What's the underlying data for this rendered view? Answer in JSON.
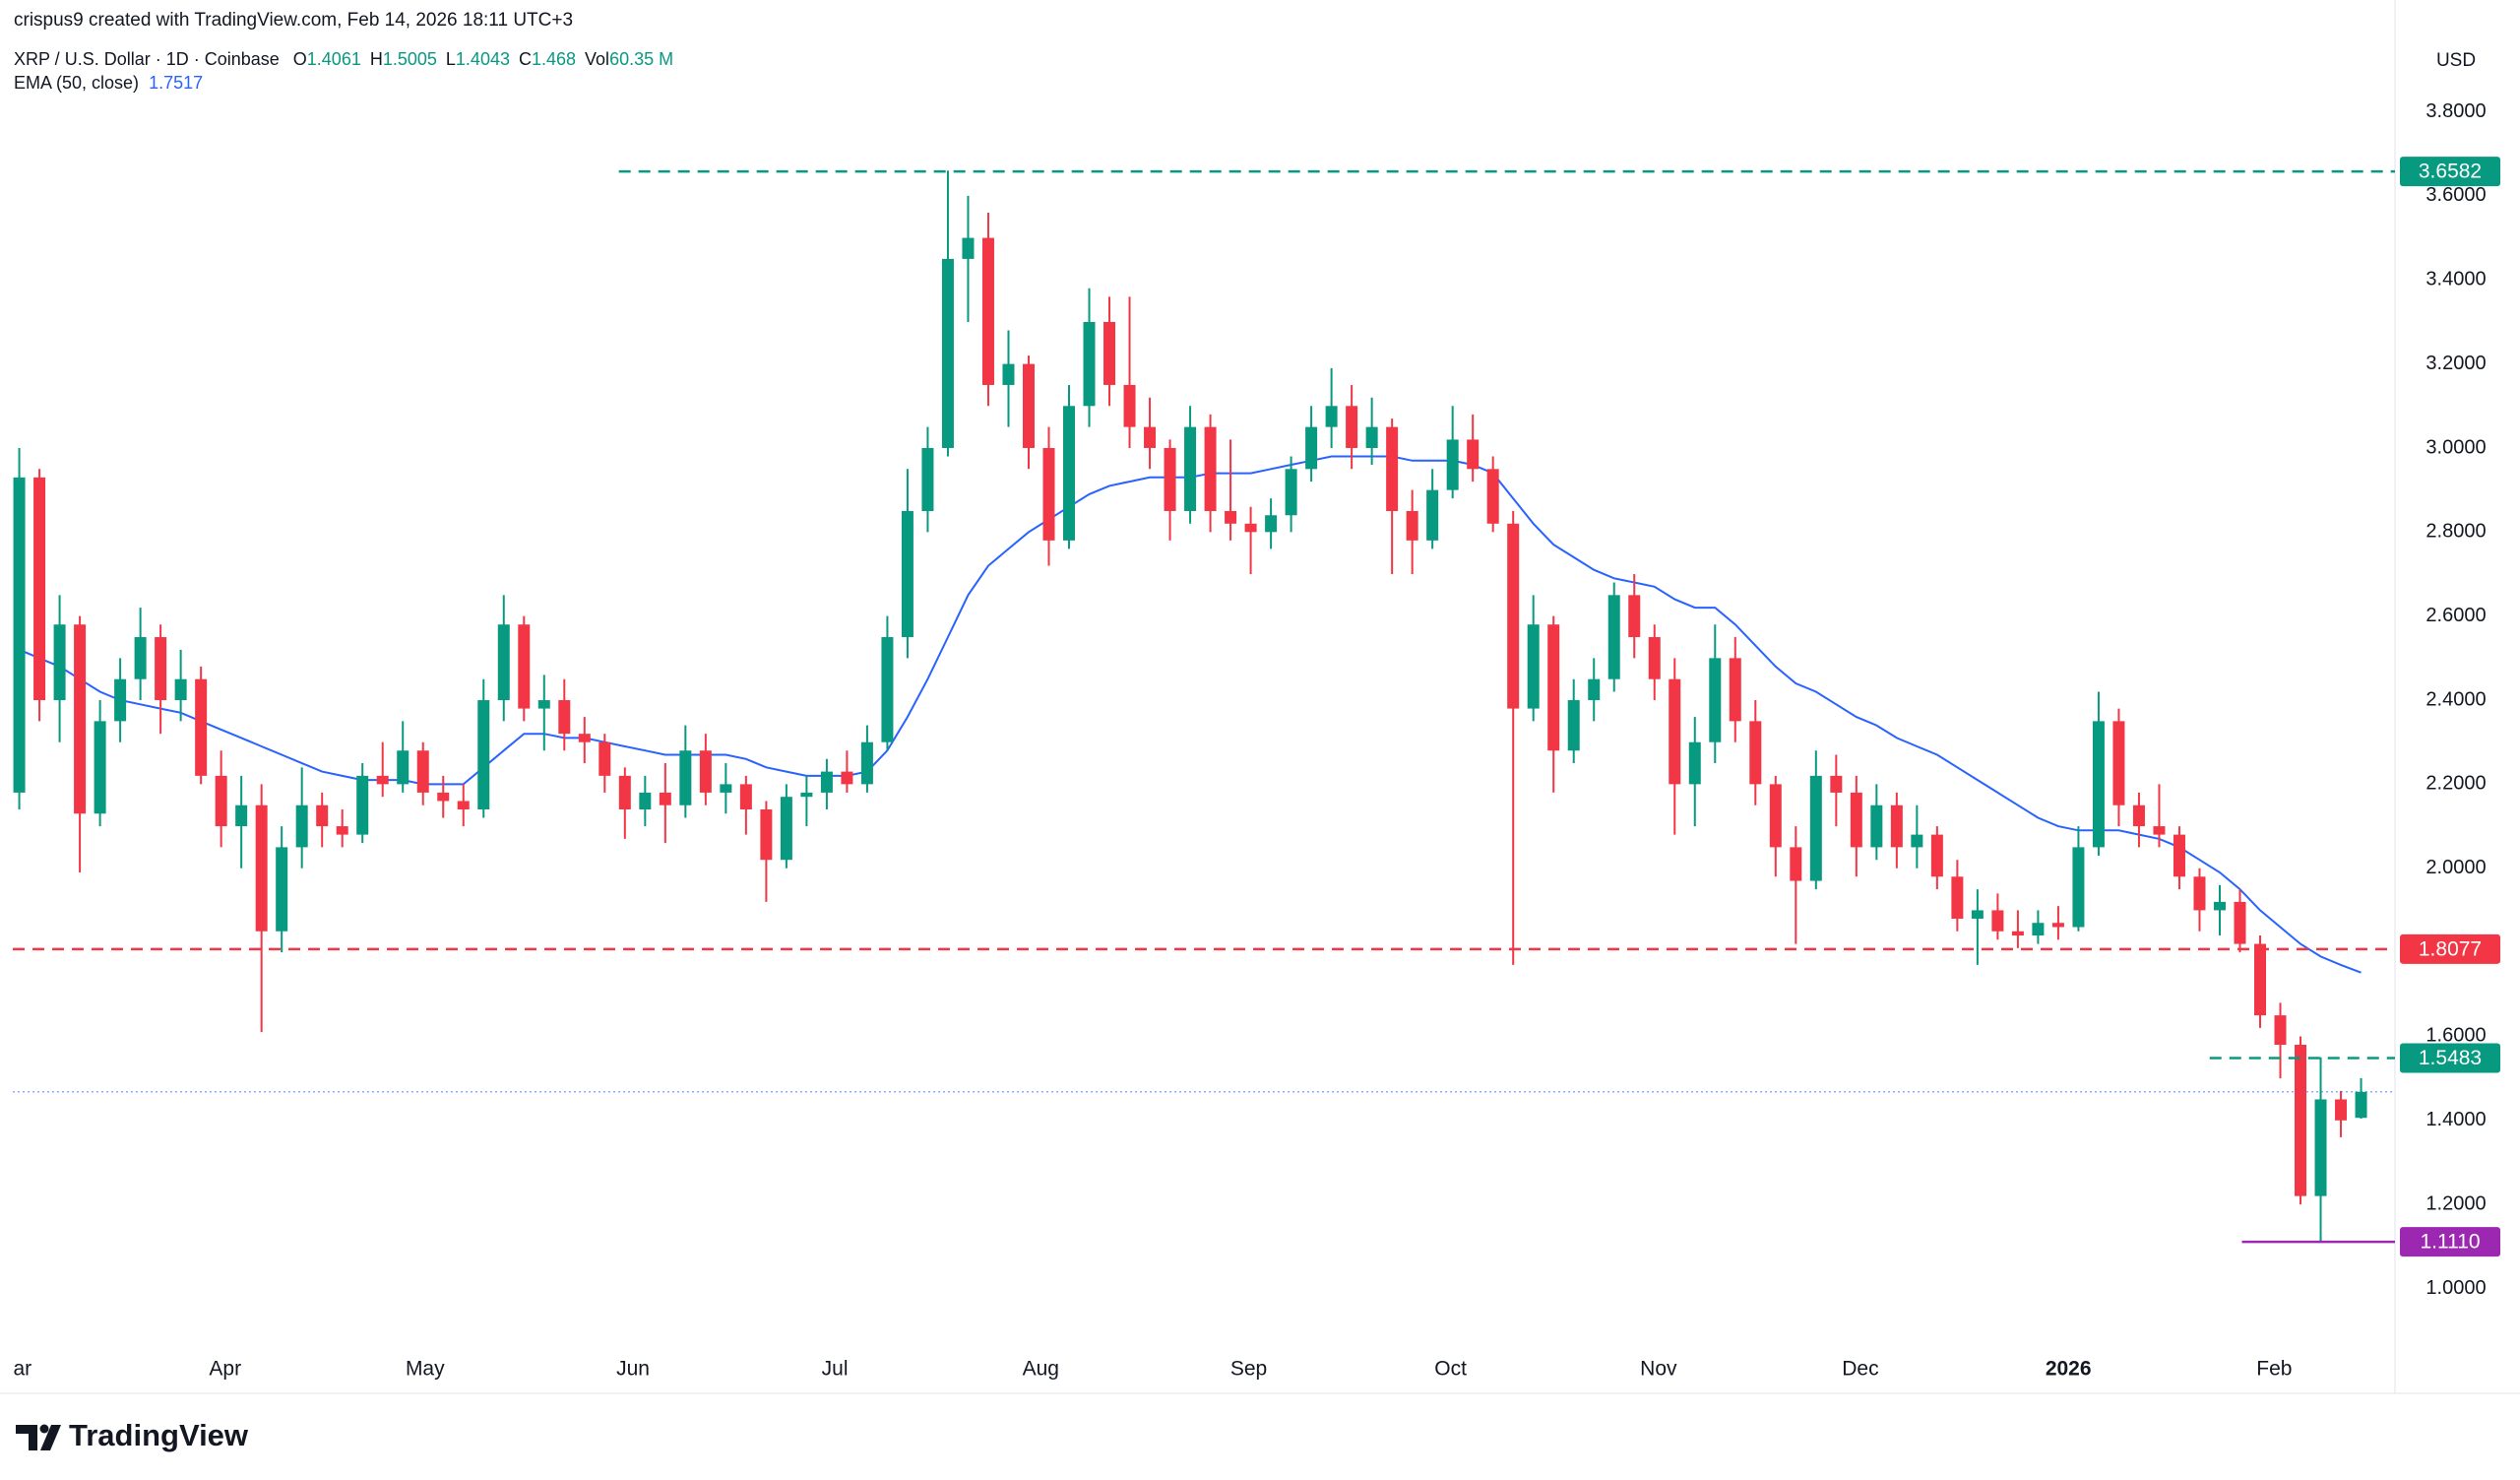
{
  "header": "crispus9 created with TradingView.com, Feb 14, 2026 18:11 UTC+3",
  "footer": "TradingView",
  "chart_data": {
    "type": "candlestick",
    "title": "XRP / U.S. Dollar · 1D · Coinbase",
    "ohlc_labels": [
      "O",
      "H",
      "L",
      "C"
    ],
    "volume_label": "Vol",
    "volume": "60.35 M",
    "currency": "USD",
    "up_color": "#089981",
    "down_color": "#f23645",
    "candles": [
      [
        2.18,
        3.0,
        2.14,
        2.93
      ],
      [
        2.93,
        2.95,
        2.35,
        2.4
      ],
      [
        2.4,
        2.65,
        2.3,
        2.58
      ],
      [
        2.58,
        2.6,
        1.99,
        2.13
      ],
      [
        2.13,
        2.4,
        2.1,
        2.35
      ],
      [
        2.35,
        2.5,
        2.3,
        2.45
      ],
      [
        2.45,
        2.62,
        2.4,
        2.55
      ],
      [
        2.55,
        2.58,
        2.32,
        2.4
      ],
      [
        2.4,
        2.52,
        2.35,
        2.45
      ],
      [
        2.45,
        2.48,
        2.2,
        2.22
      ],
      [
        2.22,
        2.28,
        2.05,
        2.1
      ],
      [
        2.1,
        2.22,
        2.0,
        2.15
      ],
      [
        2.15,
        2.2,
        1.61,
        1.85
      ],
      [
        1.85,
        2.1,
        1.8,
        2.05
      ],
      [
        2.05,
        2.24,
        2.0,
        2.15
      ],
      [
        2.15,
        2.18,
        2.05,
        2.1
      ],
      [
        2.1,
        2.14,
        2.05,
        2.08
      ],
      [
        2.08,
        2.25,
        2.06,
        2.22
      ],
      [
        2.22,
        2.3,
        2.17,
        2.2
      ],
      [
        2.2,
        2.35,
        2.18,
        2.28
      ],
      [
        2.28,
        2.3,
        2.15,
        2.18
      ],
      [
        2.18,
        2.22,
        2.12,
        2.16
      ],
      [
        2.16,
        2.2,
        2.1,
        2.14
      ],
      [
        2.14,
        2.45,
        2.12,
        2.4
      ],
      [
        2.4,
        2.65,
        2.35,
        2.58
      ],
      [
        2.58,
        2.6,
        2.35,
        2.38
      ],
      [
        2.38,
        2.46,
        2.28,
        2.4
      ],
      [
        2.4,
        2.45,
        2.28,
        2.32
      ],
      [
        2.32,
        2.36,
        2.25,
        2.3
      ],
      [
        2.3,
        2.32,
        2.18,
        2.22
      ],
      [
        2.22,
        2.24,
        2.07,
        2.14
      ],
      [
        2.14,
        2.22,
        2.1,
        2.18
      ],
      [
        2.18,
        2.25,
        2.06,
        2.15
      ],
      [
        2.15,
        2.34,
        2.12,
        2.28
      ],
      [
        2.28,
        2.32,
        2.15,
        2.18
      ],
      [
        2.18,
        2.25,
        2.13,
        2.2
      ],
      [
        2.2,
        2.22,
        2.08,
        2.14
      ],
      [
        2.14,
        2.16,
        1.92,
        2.02
      ],
      [
        2.02,
        2.2,
        2.0,
        2.17
      ],
      [
        2.17,
        2.22,
        2.1,
        2.18
      ],
      [
        2.18,
        2.26,
        2.14,
        2.23
      ],
      [
        2.23,
        2.28,
        2.18,
        2.2
      ],
      [
        2.2,
        2.34,
        2.18,
        2.3
      ],
      [
        2.3,
        2.6,
        2.28,
        2.55
      ],
      [
        2.55,
        2.95,
        2.5,
        2.85
      ],
      [
        2.85,
        3.05,
        2.8,
        3.0
      ],
      [
        3.0,
        3.66,
        2.98,
        3.45
      ],
      [
        3.45,
        3.6,
        3.3,
        3.5
      ],
      [
        3.5,
        3.56,
        3.1,
        3.15
      ],
      [
        3.15,
        3.28,
        3.05,
        3.2
      ],
      [
        3.2,
        3.22,
        2.95,
        3.0
      ],
      [
        3.0,
        3.05,
        2.72,
        2.78
      ],
      [
        2.78,
        3.15,
        2.76,
        3.1
      ],
      [
        3.1,
        3.38,
        3.05,
        3.3
      ],
      [
        3.3,
        3.36,
        3.1,
        3.15
      ],
      [
        3.15,
        3.36,
        3.0,
        3.05
      ],
      [
        3.05,
        3.12,
        2.95,
        3.0
      ],
      [
        3.0,
        3.02,
        2.78,
        2.85
      ],
      [
        2.85,
        3.1,
        2.82,
        3.05
      ],
      [
        3.05,
        3.08,
        2.8,
        2.85
      ],
      [
        2.85,
        3.02,
        2.78,
        2.82
      ],
      [
        2.82,
        2.86,
        2.7,
        2.8
      ],
      [
        2.8,
        2.88,
        2.76,
        2.84
      ],
      [
        2.84,
        2.98,
        2.8,
        2.95
      ],
      [
        2.95,
        3.1,
        2.92,
        3.05
      ],
      [
        3.05,
        3.19,
        3.0,
        3.1
      ],
      [
        3.1,
        3.15,
        2.95,
        3.0
      ],
      [
        3.0,
        3.12,
        2.96,
        3.05
      ],
      [
        3.05,
        3.07,
        2.7,
        2.85
      ],
      [
        2.85,
        2.9,
        2.7,
        2.78
      ],
      [
        2.78,
        2.95,
        2.76,
        2.9
      ],
      [
        2.9,
        3.1,
        2.88,
        3.02
      ],
      [
        3.02,
        3.08,
        2.92,
        2.95
      ],
      [
        2.95,
        2.98,
        2.8,
        2.82
      ],
      [
        2.82,
        2.85,
        1.77,
        2.38
      ],
      [
        2.38,
        2.65,
        2.35,
        2.58
      ],
      [
        2.58,
        2.6,
        2.18,
        2.28
      ],
      [
        2.28,
        2.45,
        2.25,
        2.4
      ],
      [
        2.4,
        2.5,
        2.35,
        2.45
      ],
      [
        2.45,
        2.68,
        2.42,
        2.65
      ],
      [
        2.65,
        2.7,
        2.5,
        2.55
      ],
      [
        2.55,
        2.58,
        2.4,
        2.45
      ],
      [
        2.45,
        2.5,
        2.08,
        2.2
      ],
      [
        2.2,
        2.36,
        2.1,
        2.3
      ],
      [
        2.3,
        2.58,
        2.25,
        2.5
      ],
      [
        2.5,
        2.55,
        2.3,
        2.35
      ],
      [
        2.35,
        2.4,
        2.15,
        2.2
      ],
      [
        2.2,
        2.22,
        1.98,
        2.05
      ],
      [
        2.05,
        2.1,
        1.82,
        1.97
      ],
      [
        1.97,
        2.28,
        1.95,
        2.22
      ],
      [
        2.22,
        2.27,
        2.1,
        2.18
      ],
      [
        2.18,
        2.22,
        1.98,
        2.05
      ],
      [
        2.05,
        2.2,
        2.02,
        2.15
      ],
      [
        2.15,
        2.18,
        2.0,
        2.05
      ],
      [
        2.05,
        2.15,
        2.0,
        2.08
      ],
      [
        2.08,
        2.1,
        1.95,
        1.98
      ],
      [
        1.98,
        2.02,
        1.85,
        1.88
      ],
      [
        1.88,
        1.95,
        1.77,
        1.9
      ],
      [
        1.9,
        1.94,
        1.83,
        1.85
      ],
      [
        1.85,
        1.9,
        1.81,
        1.84
      ],
      [
        1.84,
        1.9,
        1.82,
        1.87
      ],
      [
        1.87,
        1.91,
        1.83,
        1.86
      ],
      [
        1.86,
        2.1,
        1.85,
        2.05
      ],
      [
        2.05,
        2.42,
        2.03,
        2.35
      ],
      [
        2.35,
        2.38,
        2.1,
        2.15
      ],
      [
        2.15,
        2.18,
        2.05,
        2.1
      ],
      [
        2.1,
        2.2,
        2.05,
        2.08
      ],
      [
        2.08,
        2.1,
        1.95,
        1.98
      ],
      [
        1.98,
        2.0,
        1.85,
        1.9
      ],
      [
        1.9,
        1.96,
        1.84,
        1.92
      ],
      [
        1.92,
        1.95,
        1.8,
        1.82
      ],
      [
        1.82,
        1.84,
        1.62,
        1.65
      ],
      [
        1.65,
        1.68,
        1.5,
        1.58
      ],
      [
        1.58,
        1.6,
        1.2,
        1.22
      ],
      [
        1.22,
        1.55,
        1.11,
        1.45
      ],
      [
        1.45,
        1.47,
        1.36,
        1.4
      ],
      [
        1.4061,
        1.5005,
        1.4043,
        1.468
      ]
    ],
    "ema": {
      "name": "EMA (50, close)",
      "color": "#2962ff",
      "values": [
        2.52,
        2.5,
        2.48,
        2.45,
        2.42,
        2.4,
        2.39,
        2.38,
        2.37,
        2.35,
        2.33,
        2.31,
        2.29,
        2.27,
        2.25,
        2.23,
        2.22,
        2.21,
        2.21,
        2.21,
        2.2,
        2.2,
        2.2,
        2.24,
        2.28,
        2.32,
        2.32,
        2.31,
        2.31,
        2.3,
        2.29,
        2.28,
        2.27,
        2.27,
        2.27,
        2.27,
        2.26,
        2.24,
        2.23,
        2.22,
        2.22,
        2.22,
        2.23,
        2.28,
        2.36,
        2.45,
        2.55,
        2.65,
        2.72,
        2.76,
        2.8,
        2.83,
        2.86,
        2.89,
        2.91,
        2.92,
        2.93,
        2.93,
        2.93,
        2.94,
        2.94,
        2.94,
        2.95,
        2.96,
        2.97,
        2.98,
        2.98,
        2.98,
        2.98,
        2.97,
        2.97,
        2.97,
        2.96,
        2.94,
        2.88,
        2.82,
        2.77,
        2.74,
        2.71,
        2.69,
        2.68,
        2.67,
        2.64,
        2.62,
        2.62,
        2.58,
        2.53,
        2.48,
        2.44,
        2.42,
        2.39,
        2.36,
        2.34,
        2.31,
        2.29,
        2.27,
        2.24,
        2.21,
        2.18,
        2.15,
        2.12,
        2.1,
        2.09,
        2.09,
        2.09,
        2.08,
        2.07,
        2.05,
        2.02,
        1.99,
        1.95,
        1.9,
        1.86,
        1.82,
        1.79,
        1.77,
        1.7517
      ]
    },
    "ylim": [
      0.87,
      3.97
    ],
    "yticks": [
      {
        "value": 1.0,
        "label": "1.0000"
      },
      {
        "value": 1.2,
        "label": "1.2000"
      },
      {
        "value": 1.4,
        "label": "1.4000"
      },
      {
        "value": 1.6,
        "label": "1.6000"
      },
      {
        "value": 1.8,
        "label": "1.8000"
      },
      {
        "value": 2.0,
        "label": "2.0000"
      },
      {
        "value": 2.2,
        "label": "2.2000"
      },
      {
        "value": 2.4,
        "label": "2.4000"
      },
      {
        "value": 2.6,
        "label": "2.6000"
      },
      {
        "value": 2.8,
        "label": "2.8000"
      },
      {
        "value": 3.0,
        "label": "3.0000"
      },
      {
        "value": 3.2,
        "label": "3.2000"
      },
      {
        "value": 3.4,
        "label": "3.4000"
      },
      {
        "value": 3.6,
        "label": "3.6000"
      },
      {
        "value": 3.8,
        "label": "3.8000"
      }
    ],
    "xlim": [
      -0.32,
      117.68
    ],
    "xticks": [
      {
        "value": 0.16,
        "label": "ar"
      },
      {
        "value": 10.2,
        "label": "Apr"
      },
      {
        "value": 20.1,
        "label": "May"
      },
      {
        "value": 30.4,
        "label": "Jun"
      },
      {
        "value": 40.4,
        "label": "Jul"
      },
      {
        "value": 50.6,
        "label": "Aug"
      },
      {
        "value": 60.9,
        "label": "Sep"
      },
      {
        "value": 70.9,
        "label": "Oct"
      },
      {
        "value": 81.2,
        "label": "Nov"
      },
      {
        "value": 91.2,
        "label": "Dec"
      },
      {
        "value": 101.5,
        "label": "2026",
        "emphasis": true
      },
      {
        "value": 111.7,
        "label": "Feb"
      }
    ],
    "levels": [
      {
        "value": 3.6582,
        "color": "#089981",
        "style": "dashed",
        "start": 29.7
      },
      {
        "value": 1.8077,
        "color": "#f23645",
        "style": "dashed"
      },
      {
        "value": 1.5483,
        "color": "#089981",
        "style": "dashed",
        "start": 108.5
      },
      {
        "value": 1.111,
        "label": "1.1110",
        "color": "#9c27b0",
        "style": "solid",
        "start": 110.1
      }
    ],
    "last_price_line": {
      "color": "#2962ff",
      "style": "dotted"
    }
  }
}
